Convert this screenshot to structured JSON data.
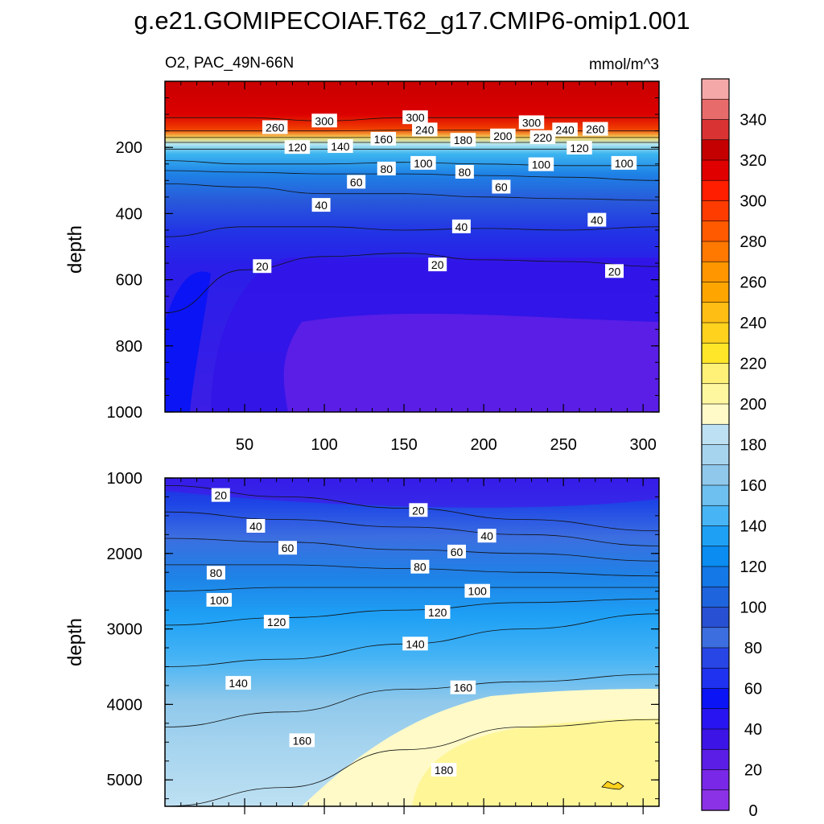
{
  "title": "g.e21.GOMIPECOIAF.T62_g17.CMIP6-omip1.001",
  "subtitle_left": "O2, PAC_49N-66N",
  "subtitle_right": "mmol/m^3",
  "chart_data": [
    {
      "type": "contour",
      "name": "upper-panel",
      "variable": "O2",
      "region": "PAC_49N-66N",
      "units": "mmol/m^3",
      "xlabel": "",
      "ylabel": "depth",
      "xlim": [
        0,
        310
      ],
      "ylim": [
        1000,
        0
      ],
      "xticks": [
        50,
        100,
        150,
        200,
        250,
        300
      ],
      "yticks": [
        200,
        400,
        600,
        800,
        1000
      ],
      "contours": [
        {
          "level": 300,
          "depth": [
            110,
            110,
            120,
            110,
            110,
            110,
            110
          ]
        },
        {
          "level": 260,
          "depth": [
            150,
            150,
            150,
            148,
            148,
            150,
            150
          ]
        },
        {
          "level": 200,
          "depth": [
            170,
            170,
            170,
            170,
            170,
            170,
            170
          ]
        },
        {
          "level": 160,
          "depth": [
            185,
            185,
            185,
            185,
            185,
            185,
            185
          ]
        },
        {
          "level": 120,
          "depth": [
            205,
            205,
            205,
            205,
            205,
            205,
            205
          ]
        },
        {
          "level": 100,
          "depth": [
            240,
            250,
            250,
            245,
            250,
            255,
            255
          ]
        },
        {
          "level": 80,
          "depth": [
            270,
            275,
            280,
            280,
            285,
            290,
            300
          ]
        },
        {
          "level": 60,
          "depth": [
            310,
            320,
            340,
            340,
            350,
            355,
            360
          ]
        },
        {
          "level": 40,
          "depth": [
            470,
            440,
            440,
            450,
            445,
            450,
            440
          ]
        },
        {
          "level": 20,
          "depth": [
            700,
            570,
            530,
            520,
            540,
            545,
            560
          ]
        }
      ],
      "contour_x": [
        0,
        50,
        100,
        150,
        200,
        250,
        310
      ],
      "labels": [
        {
          "x": 100,
          "depth": 120,
          "text": "300"
        },
        {
          "x": 157,
          "depth": 110,
          "text": "300"
        },
        {
          "x": 230,
          "depth": 125,
          "text": "300"
        },
        {
          "x": 69,
          "depth": 140,
          "text": "260"
        },
        {
          "x": 270,
          "depth": 145,
          "text": "260"
        },
        {
          "x": 251,
          "depth": 147,
          "text": "240"
        },
        {
          "x": 163,
          "depth": 147,
          "text": "240"
        },
        {
          "x": 237,
          "depth": 170,
          "text": "220"
        },
        {
          "x": 212,
          "depth": 165,
          "text": "200"
        },
        {
          "x": 187,
          "depth": 178,
          "text": "180"
        },
        {
          "x": 137,
          "depth": 175,
          "text": "160"
        },
        {
          "x": 110,
          "depth": 197,
          "text": "140"
        },
        {
          "x": 83,
          "depth": 200,
          "text": "120"
        },
        {
          "x": 260,
          "depth": 202,
          "text": "120"
        },
        {
          "x": 162,
          "depth": 248,
          "text": "100"
        },
        {
          "x": 236,
          "depth": 252,
          "text": "100"
        },
        {
          "x": 288,
          "depth": 248,
          "text": "100"
        },
        {
          "x": 139,
          "depth": 265,
          "text": "80"
        },
        {
          "x": 188,
          "depth": 275,
          "text": "80"
        },
        {
          "x": 120,
          "depth": 305,
          "text": "60"
        },
        {
          "x": 211,
          "depth": 320,
          "text": "60"
        },
        {
          "x": 98,
          "depth": 375,
          "text": "40"
        },
        {
          "x": 186,
          "depth": 440,
          "text": "40"
        },
        {
          "x": 271,
          "depth": 420,
          "text": "40"
        },
        {
          "x": 61,
          "depth": 560,
          "text": "20"
        },
        {
          "x": 171,
          "depth": 555,
          "text": "20"
        },
        {
          "x": 282,
          "depth": 575,
          "text": "20"
        }
      ]
    },
    {
      "type": "contour",
      "name": "lower-panel",
      "variable": "O2",
      "region": "PAC_49N-66N",
      "units": "mmol/m^3",
      "xlabel": "",
      "ylabel": "depth",
      "xlim": [
        0,
        310
      ],
      "ylim": [
        5350,
        1000
      ],
      "yticks": [
        1000,
        2000,
        3000,
        4000,
        5000
      ],
      "contours": [
        {
          "level": 20,
          "depth": [
            1100,
            1250,
            1400,
            1550,
            1700
          ]
        },
        {
          "level": 40,
          "depth": [
            1450,
            1550,
            1650,
            1750,
            1900
          ]
        },
        {
          "level": 60,
          "depth": [
            1800,
            1850,
            1950,
            2000,
            2100
          ]
        },
        {
          "level": 80,
          "depth": [
            2150,
            2150,
            2200,
            2250,
            2300
          ]
        },
        {
          "level": 100,
          "depth": [
            2500,
            2450,
            2450,
            2450,
            2450
          ]
        },
        {
          "level": 120,
          "depth": [
            2950,
            2850,
            2750,
            2650,
            2600
          ]
        },
        {
          "level": 140,
          "depth": [
            3500,
            3400,
            3200,
            3000,
            2800
          ]
        },
        {
          "level": 160,
          "depth": [
            4300,
            4100,
            3800,
            3700,
            3600
          ]
        },
        {
          "level": 180,
          "depth": [
            5350,
            5100,
            4600,
            4300,
            4200
          ]
        }
      ],
      "contour_x": [
        0,
        75,
        150,
        225,
        310
      ],
      "labels": [
        {
          "x": 35,
          "depth": 1230,
          "text": "20"
        },
        {
          "x": 159,
          "depth": 1430,
          "text": "20"
        },
        {
          "x": 57,
          "depth": 1640,
          "text": "40"
        },
        {
          "x": 202,
          "depth": 1770,
          "text": "40"
        },
        {
          "x": 77,
          "depth": 1930,
          "text": "60"
        },
        {
          "x": 183,
          "depth": 1980,
          "text": "60"
        },
        {
          "x": 32,
          "depth": 2260,
          "text": "80"
        },
        {
          "x": 160,
          "depth": 2180,
          "text": "80"
        },
        {
          "x": 34,
          "depth": 2620,
          "text": "100"
        },
        {
          "x": 196,
          "depth": 2500,
          "text": "100"
        },
        {
          "x": 70,
          "depth": 2910,
          "text": "120"
        },
        {
          "x": 171,
          "depth": 2780,
          "text": "120"
        },
        {
          "x": 157,
          "depth": 3200,
          "text": "140"
        },
        {
          "x": 46,
          "depth": 3720,
          "text": "140"
        },
        {
          "x": 187,
          "depth": 3780,
          "text": "160"
        },
        {
          "x": 86,
          "depth": 4480,
          "text": "160"
        },
        {
          "x": 175,
          "depth": 4870,
          "text": "180"
        }
      ]
    }
  ],
  "colorbar": {
    "levels": [
      "340",
      "320",
      "300",
      "280",
      "260",
      "240",
      "220",
      "200",
      "180",
      "160",
      "140",
      "120",
      "100",
      "80",
      "60",
      "40",
      "20",
      "0"
    ],
    "colors": [
      "#f5a8a8",
      "#e86b6b",
      "#d93333",
      "#c40000",
      "#e00000",
      "#ff1e00",
      "#ff3c00",
      "#ff5a00",
      "#ff7800",
      "#ff9600",
      "#ffa500",
      "#ffbe14",
      "#ffd21e",
      "#ffe628",
      "#fff078",
      "#fff6a0",
      "#fffac8",
      "#bde0f2",
      "#a6d4ef",
      "#8fc8eb",
      "#6ec0f0",
      "#46b4f5",
      "#1ea0f5",
      "#0a8cf0",
      "#1478e6",
      "#1e64dc",
      "#2850d2",
      "#3c6ee0",
      "#2846e6",
      "#1e32f0",
      "#0a14f5",
      "#2814f0",
      "#3c14e6",
      "#5a1ee6",
      "#7828e6",
      "#8c32e6"
    ]
  }
}
